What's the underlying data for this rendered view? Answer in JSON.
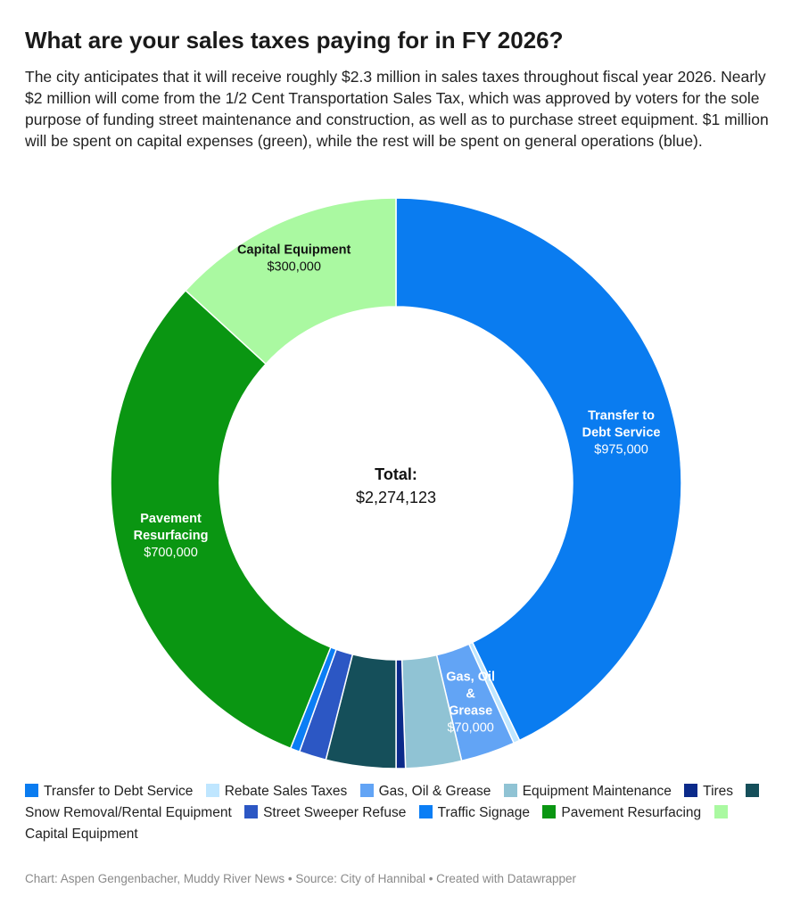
{
  "title": "What are your sales taxes paying for in FY 2026?",
  "subtitle": "The city anticipates that it will receive roughly $2.3 million in sales taxes throughout fiscal year 2026. Nearly $2 million will come from the 1/2 Cent Transportation Sales Tax, which was approved by voters for the sole purpose of funding street maintenance and construction, as well as to purchase street equipment. $1 million will be spent on capital expenses (green), while the rest will be spent on general operations (blue).",
  "center": {
    "label": "Total:",
    "value": "$2,274,123"
  },
  "footer": "Chart: Aspen Gengenbacher, Muddy River News • Source: City of Hannibal • Created with Datawrapper",
  "chart_data": {
    "type": "pie",
    "total": 2274123,
    "slices": [
      {
        "name": "Transfer to Debt Service",
        "value": 975000,
        "color": "#0a7cf0",
        "label_lines": [
          "Transfer to",
          "Debt Service"
        ],
        "value_label": "$975,000",
        "label_color": "#ffffff"
      },
      {
        "name": "Rebate Sales Taxes",
        "value": 8000,
        "color": "#bfe6ff"
      },
      {
        "name": "Gas, Oil & Grease",
        "value": 70000,
        "color": "#62a4f5",
        "label_lines": [
          "Gas, Oil",
          "&",
          "Grease"
        ],
        "value_label": "$70,000",
        "label_color": "#ffffff"
      },
      {
        "name": "Equipment Maintenance",
        "value": 72000,
        "color": "#90c3d4"
      },
      {
        "name": "Tires",
        "value": 12000,
        "color": "#0b2a8a"
      },
      {
        "name": "Snow Removal/Rental Equipment",
        "value": 90000,
        "color": "#154f5a"
      },
      {
        "name": "Street Sweeper Refuse",
        "value": 35000,
        "color": "#2c57c4"
      },
      {
        "name": "Traffic Signage",
        "value": 12123,
        "color": "#0b7ef5"
      },
      {
        "name": "Pavement Resurfacing",
        "value": 700000,
        "color": "#0a9612",
        "label_lines": [
          "Pavement",
          "Resurfacing"
        ],
        "value_label": "$700,000",
        "label_color": "#ffffff"
      },
      {
        "name": "Capital Equipment",
        "value": 300000,
        "color": "#aaf9a1",
        "label_lines": [
          "Capital Equipment"
        ],
        "value_label": "$300,000",
        "label_color": "#111111"
      }
    ]
  }
}
